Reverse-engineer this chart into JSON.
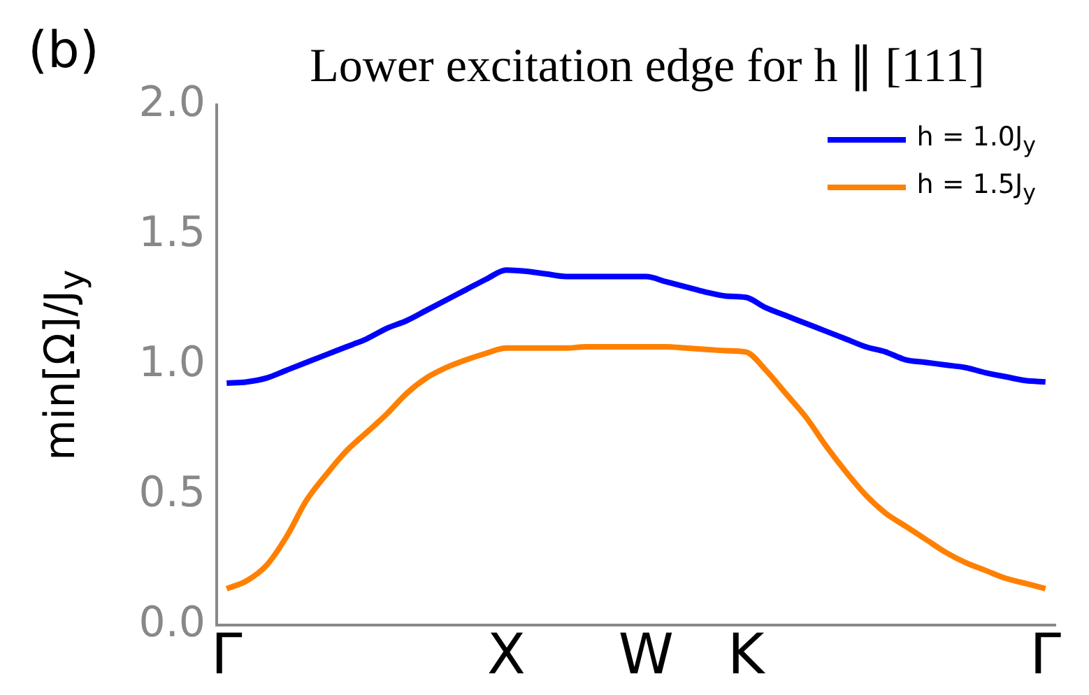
{
  "chart_data": {
    "type": "line",
    "title": "Lower excitation edge for h ∥ [111]",
    "ylabel": "min[Ω]/J$_{y}$",
    "annotations": [
      "(b)"
    ],
    "categories": [
      "Γ",
      null,
      null,
      null,
      null,
      null,
      null,
      null,
      null,
      null,
      null,
      null,
      null,
      null,
      "X",
      null,
      null,
      null,
      null,
      null,
      null,
      "W",
      null,
      null,
      null,
      null,
      "K",
      null,
      null,
      null,
      null,
      null,
      null,
      null,
      null,
      null,
      null,
      null,
      null,
      null,
      null,
      "Γ"
    ],
    "ylim": [
      0,
      2
    ],
    "yticks": [
      {
        "value": 0,
        "label": "0.0"
      },
      {
        "value": 0.5,
        "label": "0.5"
      },
      {
        "value": 1,
        "label": "1.0"
      },
      {
        "value": 1.5,
        "label": "1.5"
      },
      {
        "value": 2,
        "label": "2.0"
      }
    ],
    "grid": false,
    "legend": "top right",
    "marker": "none",
    "line_style": "solid",
    "series": [
      {
        "name": "h = 1.0J$_{y}$",
        "color": "#0000ff",
        "values": [
          0.93,
          0.935,
          0.95,
          0.98,
          1.01,
          1.04,
          1.07,
          1.1,
          1.14,
          1.17,
          1.21,
          1.25,
          1.29,
          1.33,
          1.365,
          1.36,
          1.35,
          1.34,
          1.34,
          1.34,
          1.34,
          1.34,
          1.32,
          1.3,
          1.28,
          1.265,
          1.26,
          1.22,
          1.19,
          1.16,
          1.13,
          1.1,
          1.07,
          1.05,
          1.02,
          1.01,
          1,
          0.99,
          0.97,
          0.955,
          0.94,
          0.935
        ]
      },
      {
        "name": "h = 1.5J$_{y}$",
        "color": "#ff8000",
        "values": [
          0.14,
          0.17,
          0.23,
          0.34,
          0.48,
          0.58,
          0.67,
          0.74,
          0.81,
          0.89,
          0.95,
          0.99,
          1.02,
          1.045,
          1.065,
          1.065,
          1.065,
          1.065,
          1.07,
          1.07,
          1.07,
          1.07,
          1.07,
          1.065,
          1.06,
          1.055,
          1.05,
          0.98,
          0.89,
          0.8,
          0.69,
          0.59,
          0.5,
          0.43,
          0.38,
          0.33,
          0.28,
          0.24,
          0.21,
          0.18,
          0.16,
          0.14
        ]
      }
    ]
  }
}
